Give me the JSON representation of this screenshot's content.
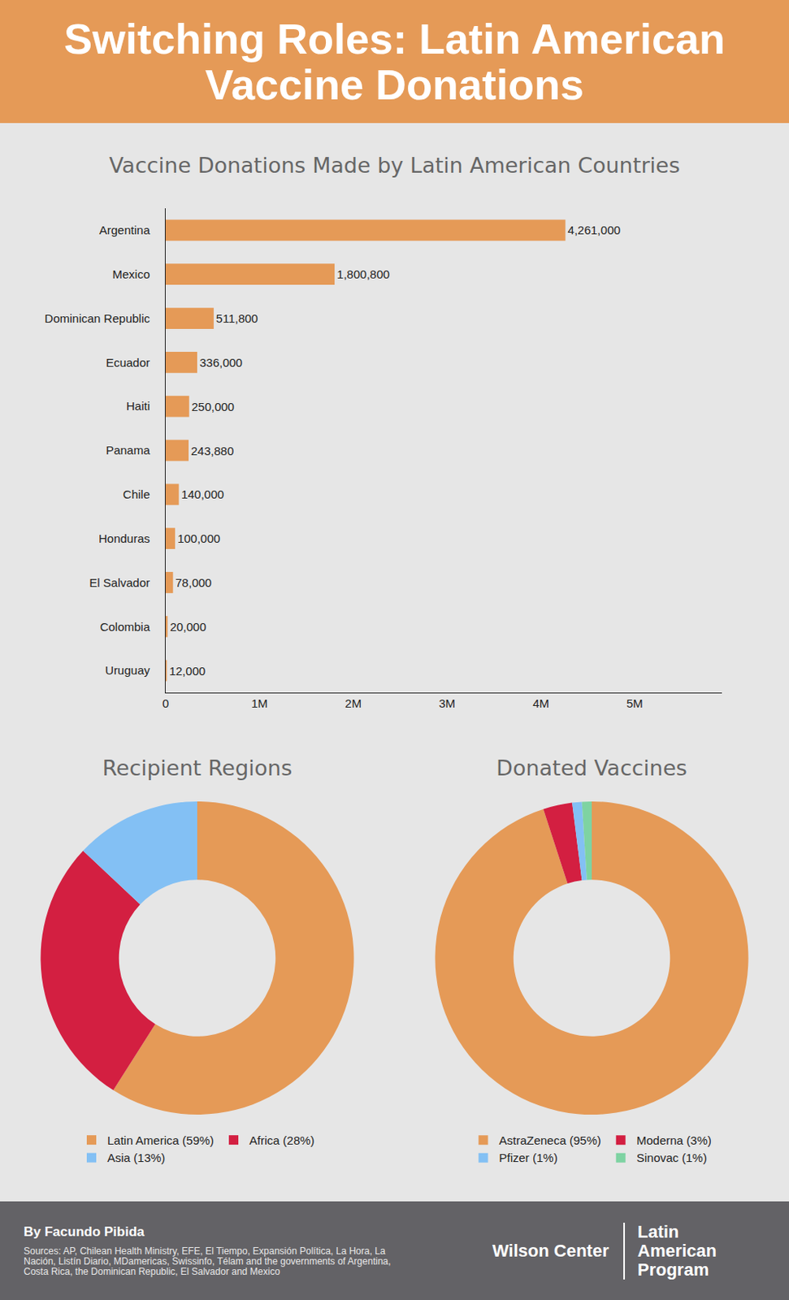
{
  "header": {
    "title": "Switching Roles: Latin American Vaccine Donations"
  },
  "chart_data": [
    {
      "type": "bar",
      "orientation": "horizontal",
      "title": "Vaccine Donations Made by Latin American Countries",
      "categories": [
        "Argentina",
        "Mexico",
        "Dominican Republic",
        "Ecuador",
        "Haiti",
        "Panama",
        "Chile",
        "Honduras",
        "El Salvador",
        "Colombia",
        "Uruguay"
      ],
      "values": [
        4261000,
        1800800,
        511800,
        336000,
        250000,
        243880,
        140000,
        100000,
        78000,
        20000,
        12000
      ],
      "value_labels": [
        "4,261,000",
        "1,800,800",
        "511,800",
        "336,000",
        "250,000",
        "243,880",
        "140,000",
        "100,000",
        "78,000",
        "20,000",
        "12,000"
      ],
      "data_labels": true,
      "color": "#E59A57",
      "xlim": [
        0,
        5930000
      ],
      "xticks": [
        0,
        {
          "value": 1000000,
          "label": "1M"
        },
        {
          "value": 2000000,
          "label": "2M"
        },
        {
          "value": 3000000,
          "label": "3M"
        },
        {
          "value": 4000000,
          "label": "4M"
        },
        {
          "value": 5000000,
          "label": "5M"
        }
      ],
      "grid": false
    },
    {
      "type": "pie",
      "title": "Recipient Regions",
      "categories": [
        "Latin America (59%)",
        "Africa (28%)",
        "Asia (13%)"
      ],
      "values": [
        59,
        28,
        13
      ],
      "colors": [
        "#E59A57",
        "#D31F41",
        "#83C0F4"
      ],
      "legend": "bottom"
    },
    {
      "type": "pie",
      "title": "Donated Vaccines",
      "categories": [
        "AstraZeneca (95%)",
        "Moderna (3%)",
        "Pfizer (1%)",
        "Sinovac (1%)"
      ],
      "values": [
        95,
        3,
        1,
        1
      ],
      "colors": [
        "#E59A57",
        "#D31F41",
        "#83C0F4",
        "#7ED3A2"
      ],
      "legend": "bottom"
    }
  ],
  "footer": {
    "author": "By Facundo Pibida",
    "sources": "Sources: AP, Chilean Health Ministry, EFE, El Tiempo, Expansión Política, La Hora, La Nación, Listín Diario, MDamericas, Swissinfo, Télam and the governments of Argentina, Costa Rica, the Dominican Republic, El Salvador and Mexico",
    "logos": [
      "Wilson Center",
      "Latin American Program"
    ]
  }
}
